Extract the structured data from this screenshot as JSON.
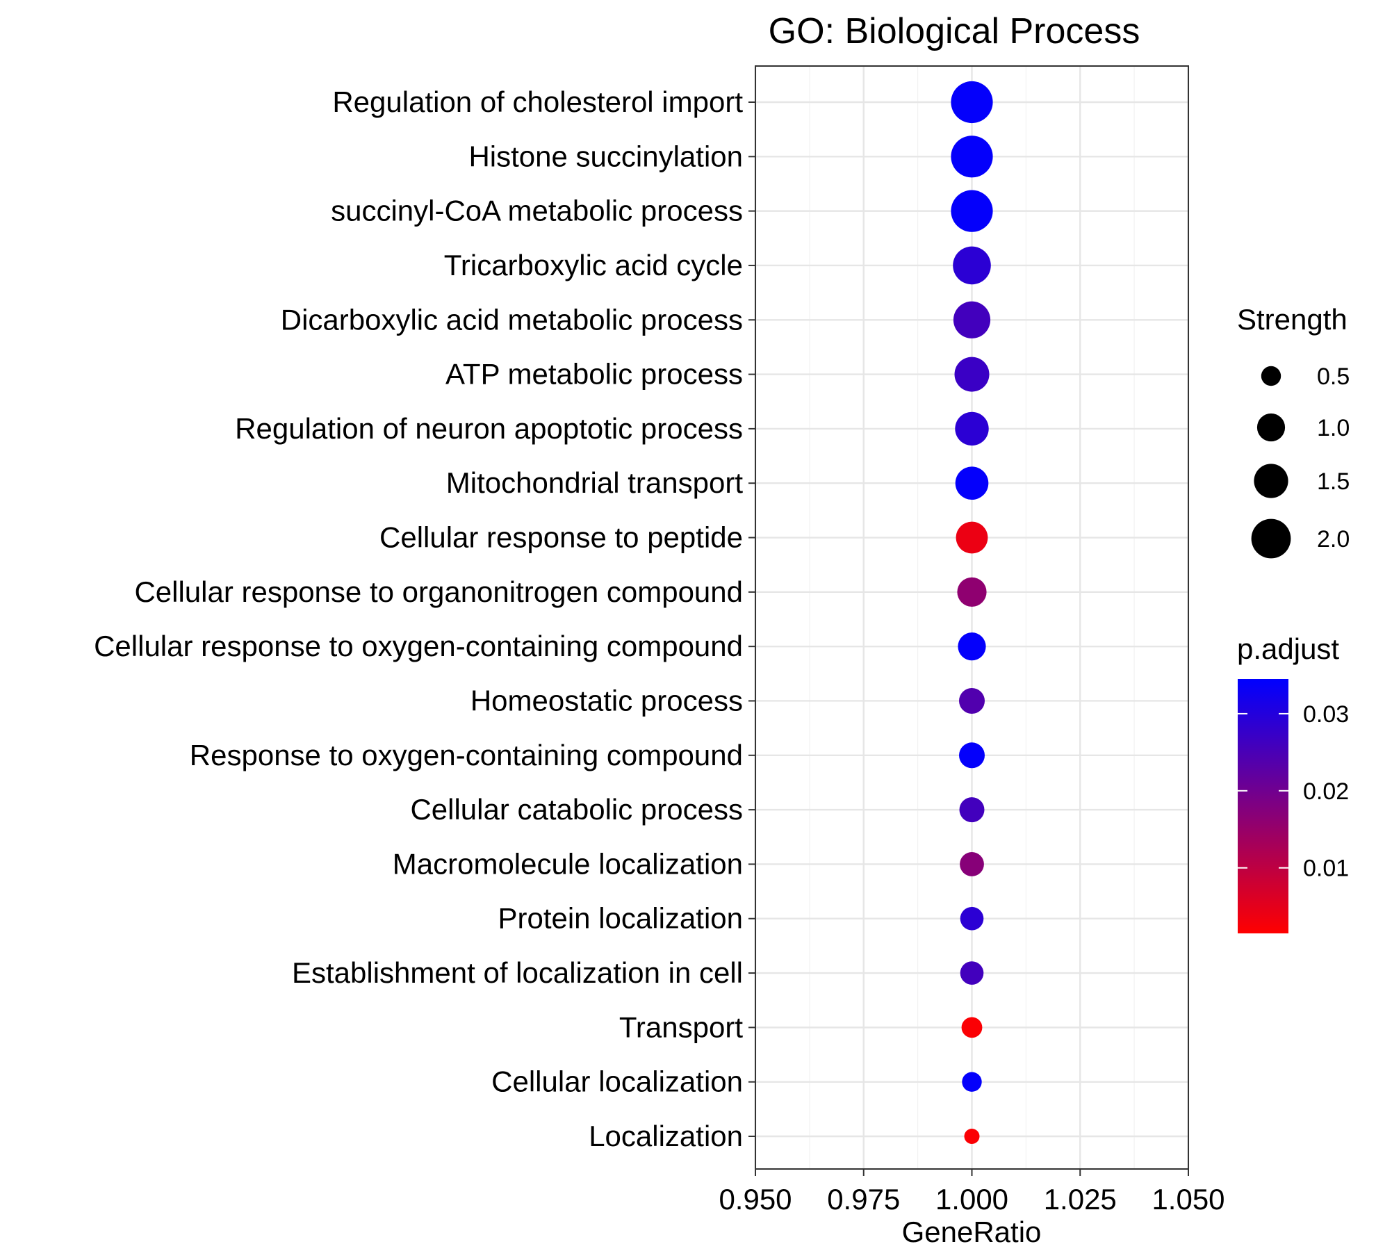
{
  "chart_data": {
    "type": "scatter",
    "title": "GO: Biological Process",
    "xlabel": "GeneRatio",
    "ylabel": "",
    "xlim": [
      0.95,
      1.05
    ],
    "xticks": [
      "0.950",
      "0.975",
      "1.000",
      "1.025",
      "1.050"
    ],
    "x_tick_values": [
      0.95,
      0.975,
      1.0,
      1.025,
      1.05
    ],
    "grid": true,
    "categories": [
      "Regulation of cholesterol import",
      "Histone succinylation",
      "succinyl-CoA metabolic process",
      "Tricarboxylic acid cycle",
      "Dicarboxylic acid metabolic process",
      "ATP metabolic process",
      "Regulation of neuron apoptotic process",
      "Mitochondrial transport",
      "Cellular response to peptide",
      "Cellular response to organonitrogen compound",
      "Cellular response to oxygen-containing compound",
      "Homeostatic process",
      "Response to oxygen-containing compound",
      "Cellular catabolic process",
      "Macromolecule localization",
      "Protein localization",
      "Establishment of localization in cell",
      "Transport",
      "Cellular localization",
      "Localization"
    ],
    "gene_ratio": [
      1,
      1,
      1,
      1,
      1,
      1,
      1,
      1,
      1,
      1,
      1,
      1,
      1,
      1,
      1,
      1,
      1,
      1,
      1,
      1
    ],
    "strength": [
      2.25,
      2.25,
      2.25,
      1.85,
      1.75,
      1.55,
      1.45,
      1.4,
      1.3,
      1.1,
      1.0,
      0.85,
      0.85,
      0.8,
      0.75,
      0.7,
      0.7,
      0.55,
      0.5,
      0.3
    ],
    "p_adjust": [
      0.034,
      0.034,
      0.034,
      0.029,
      0.026,
      0.027,
      0.029,
      0.034,
      0.004,
      0.016,
      0.034,
      0.024,
      0.034,
      0.026,
      0.017,
      0.029,
      0.026,
      0.002,
      0.034,
      0.002
    ],
    "size_legend": {
      "title": "Strength",
      "placement": "right",
      "values": [
        0.5,
        1.0,
        1.5,
        2.0
      ],
      "labels": [
        "0.5",
        "1.0",
        "1.5",
        "2.0"
      ]
    },
    "color_legend": {
      "title": "p.adjust",
      "placement": "right",
      "range": [
        0.0015,
        0.0345
      ],
      "low_color": "#ff0000",
      "high_color": "#0000ff",
      "tick_values": [
        0.03,
        0.02,
        0.01
      ],
      "tick_labels": [
        "0.03",
        "0.02",
        "0.01"
      ]
    }
  }
}
